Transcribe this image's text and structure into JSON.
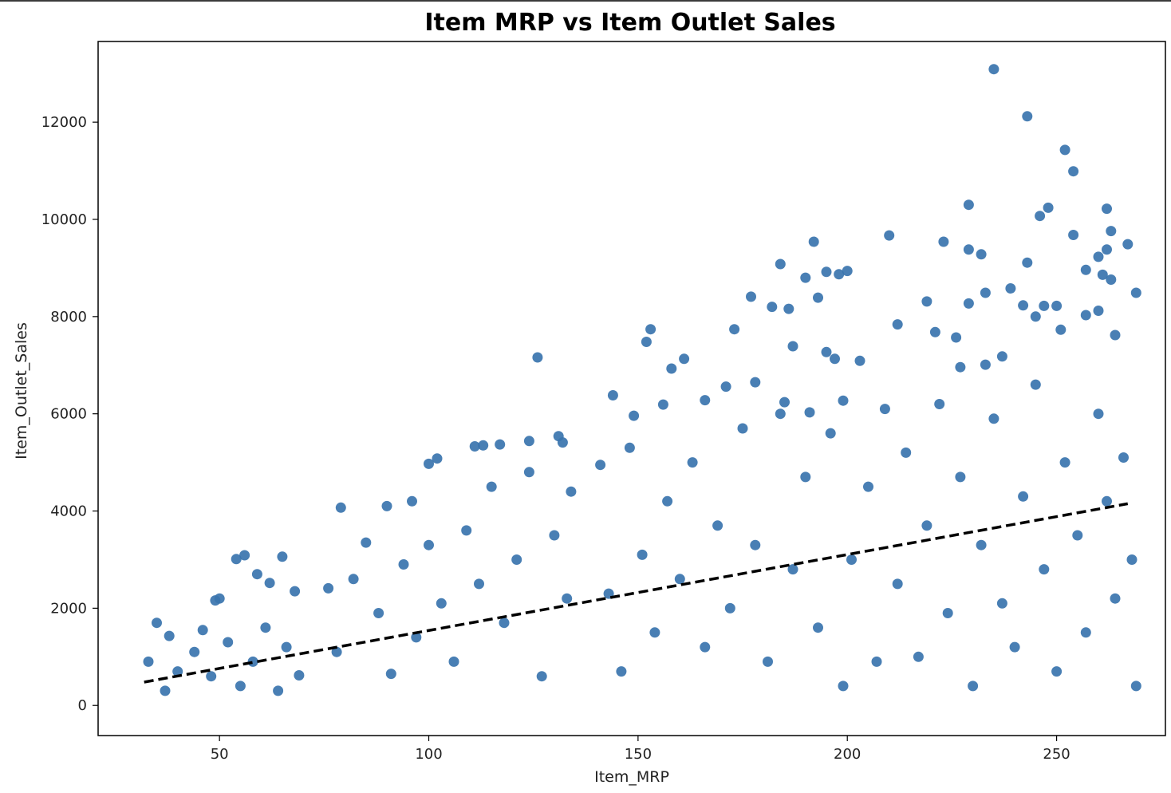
{
  "chart_data": {
    "type": "scatter",
    "title": "Item MRP vs Item Outlet Sales",
    "xlabel": "Item_MRP",
    "ylabel": "Item_Outlet_Sales",
    "xlim": [
      21,
      276
    ],
    "ylim": [
      -620,
      13660
    ],
    "xticks": [
      50,
      100,
      150,
      200,
      250
    ],
    "yticks": [
      0,
      2000,
      4000,
      6000,
      8000,
      10000,
      12000
    ],
    "grid": false,
    "legend": "none",
    "colors": {
      "points": "#3a74ae",
      "regression": "#000000"
    },
    "series": [
      {
        "note_rows": "[x, y] sample of the point cloud as drawn; the picture contains ~8500 points",
        "points": [
          [
            235,
            13090
          ],
          [
            243,
            12120
          ],
          [
            252,
            11430
          ],
          [
            254,
            10990
          ],
          [
            229,
            10300
          ],
          [
            248,
            10240
          ],
          [
            262,
            10220
          ],
          [
            246,
            10070
          ],
          [
            210,
            9670
          ],
          [
            192,
            9540
          ],
          [
            223,
            9540
          ],
          [
            254,
            9680
          ],
          [
            263,
            9760
          ],
          [
            267,
            9490
          ],
          [
            229,
            9380
          ],
          [
            232,
            9280
          ],
          [
            243,
            9110
          ],
          [
            184,
            9080
          ],
          [
            195,
            8920
          ],
          [
            200,
            8940
          ],
          [
            190,
            8800
          ],
          [
            198,
            8870
          ],
          [
            262,
            9380
          ],
          [
            260,
            9230
          ],
          [
            263,
            8760
          ],
          [
            261,
            8860
          ],
          [
            257,
            8960
          ],
          [
            269,
            8490
          ],
          [
            229,
            8270
          ],
          [
            233,
            8490
          ],
          [
            239,
            8580
          ],
          [
            219,
            8310
          ],
          [
            247,
            8220
          ],
          [
            250,
            8220
          ],
          [
            242,
            8230
          ],
          [
            193,
            8390
          ],
          [
            177,
            8410
          ],
          [
            182,
            8200
          ],
          [
            186,
            8160
          ],
          [
            212,
            7840
          ],
          [
            245,
            8000
          ],
          [
            251,
            7730
          ],
          [
            257,
            8030
          ],
          [
            260,
            8120
          ],
          [
            264,
            7620
          ],
          [
            126,
            7160
          ],
          [
            153,
            7740
          ],
          [
            173,
            7740
          ],
          [
            161,
            7130
          ],
          [
            152,
            7480
          ],
          [
            158,
            6930
          ],
          [
            187,
            7390
          ],
          [
            195,
            7270
          ],
          [
            197,
            7130
          ],
          [
            203,
            7090
          ],
          [
            221,
            7680
          ],
          [
            226,
            7570
          ],
          [
            237,
            7180
          ],
          [
            227,
            6960
          ],
          [
            233,
            7010
          ],
          [
            102,
            5080
          ],
          [
            100,
            4970
          ],
          [
            111,
            5330
          ],
          [
            113,
            5350
          ],
          [
            117,
            5370
          ],
          [
            124,
            5440
          ],
          [
            131,
            5540
          ],
          [
            132,
            5410
          ],
          [
            79,
            4070
          ],
          [
            90,
            4100
          ],
          [
            96,
            4200
          ],
          [
            144,
            6380
          ],
          [
            149,
            5960
          ],
          [
            156,
            6190
          ],
          [
            166,
            6280
          ],
          [
            171,
            6560
          ],
          [
            178,
            6650
          ],
          [
            185,
            6240
          ],
          [
            191,
            6030
          ],
          [
            199,
            6270
          ],
          [
            56,
            3090
          ],
          [
            54,
            3010
          ],
          [
            65,
            3060
          ],
          [
            59,
            2700
          ],
          [
            49,
            2160
          ],
          [
            50,
            2200
          ],
          [
            62,
            2520
          ],
          [
            35,
            1700
          ],
          [
            46,
            1550
          ],
          [
            38,
            1430
          ],
          [
            33,
            900
          ],
          [
            37,
            300
          ],
          [
            40,
            700
          ],
          [
            44,
            1100
          ],
          [
            48,
            600
          ],
          [
            52,
            1300
          ],
          [
            55,
            400
          ],
          [
            58,
            900
          ],
          [
            61,
            1600
          ],
          [
            64,
            300
          ],
          [
            66,
            1200
          ],
          [
            68,
            2350
          ],
          [
            69,
            620
          ],
          [
            76,
            2410
          ],
          [
            78,
            1100
          ],
          [
            82,
            2600
          ],
          [
            85,
            3350
          ],
          [
            88,
            1900
          ],
          [
            91,
            650
          ],
          [
            94,
            2900
          ],
          [
            97,
            1400
          ],
          [
            100,
            3300
          ],
          [
            103,
            2100
          ],
          [
            106,
            900
          ],
          [
            109,
            3600
          ],
          [
            112,
            2500
          ],
          [
            115,
            4500
          ],
          [
            118,
            1700
          ],
          [
            121,
            3000
          ],
          [
            124,
            4800
          ],
          [
            127,
            600
          ],
          [
            130,
            3500
          ],
          [
            133,
            2200
          ],
          [
            134,
            4400
          ],
          [
            141,
            4950
          ],
          [
            143,
            2300
          ],
          [
            146,
            700
          ],
          [
            148,
            5300
          ],
          [
            151,
            3100
          ],
          [
            154,
            1500
          ],
          [
            157,
            4200
          ],
          [
            160,
            2600
          ],
          [
            163,
            5000
          ],
          [
            166,
            1200
          ],
          [
            169,
            3700
          ],
          [
            172,
            2000
          ],
          [
            175,
            5700
          ],
          [
            178,
            3300
          ],
          [
            181,
            900
          ],
          [
            184,
            6000
          ],
          [
            187,
            2800
          ],
          [
            190,
            4700
          ],
          [
            193,
            1600
          ],
          [
            196,
            5600
          ],
          [
            199,
            400
          ],
          [
            201,
            3000
          ],
          [
            205,
            4500
          ],
          [
            207,
            900
          ],
          [
            209,
            6100
          ],
          [
            212,
            2500
          ],
          [
            214,
            5200
          ],
          [
            217,
            1000
          ],
          [
            219,
            3700
          ],
          [
            222,
            6200
          ],
          [
            224,
            1900
          ],
          [
            227,
            4700
          ],
          [
            230,
            400
          ],
          [
            232,
            3300
          ],
          [
            235,
            5900
          ],
          [
            237,
            2100
          ],
          [
            240,
            1200
          ],
          [
            242,
            4300
          ],
          [
            245,
            6600
          ],
          [
            247,
            2800
          ],
          [
            250,
            700
          ],
          [
            252,
            5000
          ],
          [
            255,
            3500
          ],
          [
            257,
            1500
          ],
          [
            260,
            6000
          ],
          [
            262,
            4200
          ],
          [
            264,
            2200
          ],
          [
            266,
            5100
          ],
          [
            268,
            3000
          ],
          [
            269,
            400
          ]
        ]
      }
    ],
    "regression_line": {
      "x": [
        32,
        267
      ],
      "y": [
        480,
        4150
      ]
    }
  }
}
